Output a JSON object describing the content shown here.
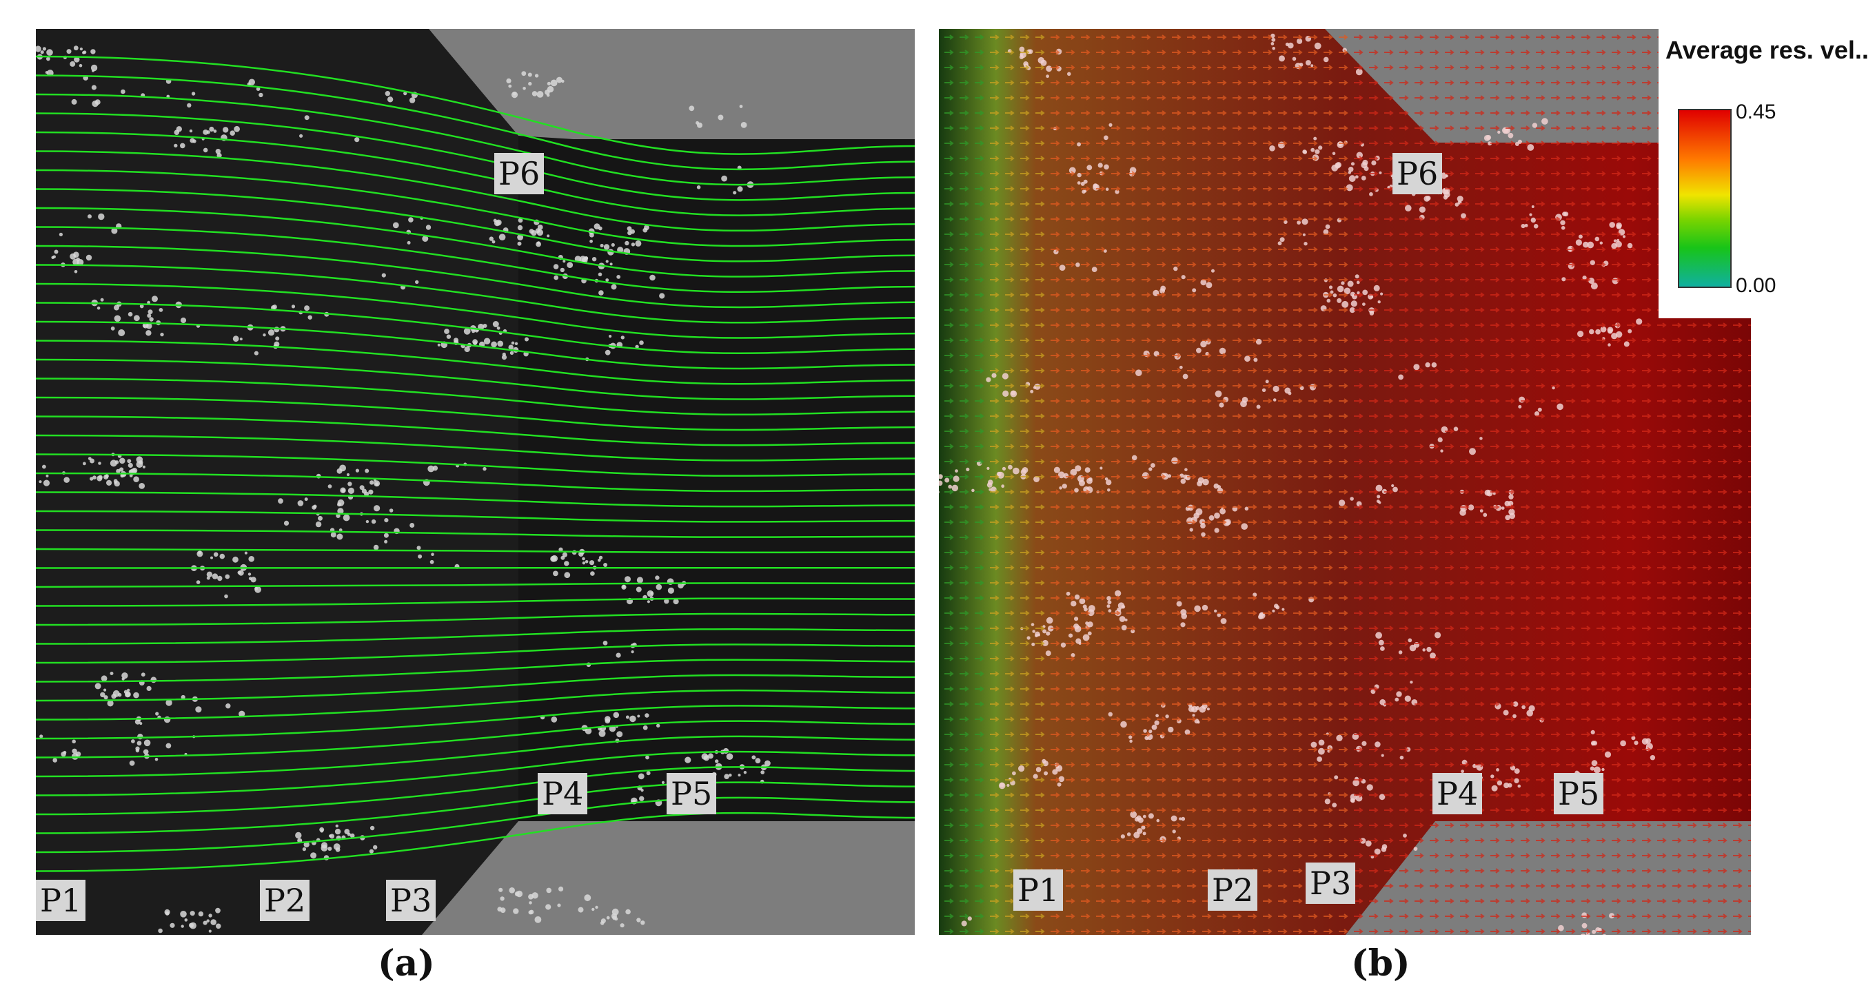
{
  "panels": [
    {
      "id": "a",
      "caption": "(a)",
      "points": {
        "P1": "P1",
        "P2": "P2",
        "P3": "P3",
        "P4": "P4",
        "P5": "P5",
        "P6": "P6"
      }
    },
    {
      "id": "b",
      "caption": "(b)",
      "points": {
        "P1": "P1",
        "P2": "P2",
        "P3": "P3",
        "P4": "P4",
        "P5": "P5",
        "P6": "P6"
      }
    }
  ],
  "legend": {
    "title": "Average res. vel..",
    "max": "0.45",
    "min": "0.00"
  },
  "colors": {
    "streamline": "#22e022",
    "wall_gray": "#7d7d7d",
    "flow_dark": "#151515",
    "velocity_high": "#e00000",
    "velocity_low": "#10b0a0"
  }
}
